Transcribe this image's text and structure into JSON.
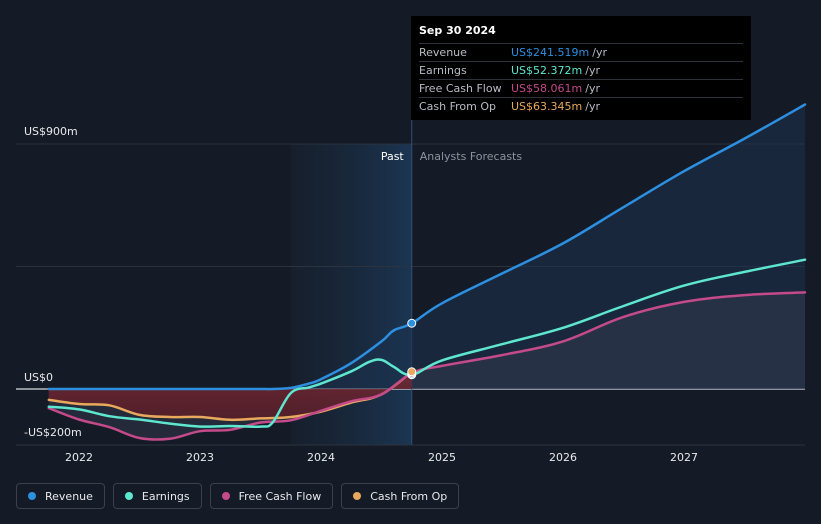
{
  "colors": {
    "revenue": "#2d8fe0",
    "earnings": "#5ee6cf",
    "free_cash_flow": "#c44a8a",
    "cash_from_op": "#e8a95c",
    "background": "#151b26"
  },
  "tooltip": {
    "date": "Sep 30 2024",
    "rows": [
      {
        "name": "Revenue",
        "value": "US$241.519m",
        "unit": "/yr",
        "color": "#2d8fe0"
      },
      {
        "name": "Earnings",
        "value": "US$52.372m",
        "unit": "/yr",
        "color": "#5ee6cf"
      },
      {
        "name": "Free Cash Flow",
        "value": "US$58.061m",
        "unit": "/yr",
        "color": "#c44a8a"
      },
      {
        "name": "Cash From Op",
        "value": "US$63.345m",
        "unit": "/yr",
        "color": "#e8a95c"
      }
    ]
  },
  "legend": [
    {
      "label": "Revenue",
      "color": "#2d8fe0"
    },
    {
      "label": "Earnings",
      "color": "#5ee6cf"
    },
    {
      "label": "Free Cash Flow",
      "color": "#c44a8a"
    },
    {
      "label": "Cash From Op",
      "color": "#e8a95c"
    }
  ],
  "chart_data": {
    "type": "line",
    "title": "",
    "xlabel": "",
    "ylabel": "",
    "ylim": [
      -250,
      900
    ],
    "y_tick_labels": [
      {
        "value": 900,
        "label": "US$900m"
      },
      {
        "value": 0,
        "label": "US$0"
      },
      {
        "value": -200,
        "label": "-US$200m"
      }
    ],
    "xlim": [
      2021.6,
      2028.0
    ],
    "x_tick_labels": [
      "2022",
      "2023",
      "2024",
      "2025",
      "2026",
      "2027"
    ],
    "x_tick_values": [
      2022,
      2023,
      2024,
      2025,
      2026,
      2027
    ],
    "past_label": "Past",
    "forecast_label": "Analysts Forecasts",
    "past_start": 2023.75,
    "divider": 2024.75,
    "series": [
      {
        "name": "Revenue",
        "color": "#2d8fe0",
        "x": [
          2021.75,
          2022.0,
          2022.5,
          2023.0,
          2023.25,
          2023.5,
          2023.6,
          2023.75,
          2023.9,
          2024.0,
          2024.25,
          2024.5,
          2024.6,
          2024.75,
          2025.0,
          2025.5,
          2026.0,
          2026.5,
          2027.0,
          2027.5,
          2028.0
        ],
        "values": [
          0,
          0,
          0,
          0,
          0,
          0,
          0,
          4,
          20,
          36,
          95,
          175,
          215,
          241.5,
          315,
          425,
          535,
          668,
          800,
          920,
          1045
        ]
      },
      {
        "name": "Earnings",
        "color": "#5ee6cf",
        "x": [
          2021.75,
          2022.0,
          2022.25,
          2022.5,
          2022.75,
          2023.0,
          2023.25,
          2023.5,
          2023.6,
          2023.75,
          2023.9,
          2024.0,
          2024.25,
          2024.4,
          2024.5,
          2024.6,
          2024.75,
          2025.0,
          2025.5,
          2026.0,
          2026.5,
          2027.0,
          2027.5,
          2028.0
        ],
        "values": [
          -65,
          -75,
          -100,
          -112,
          -127,
          -138,
          -136,
          -138,
          -123,
          -15,
          6,
          20,
          65,
          100,
          107,
          82,
          52.4,
          105,
          165,
          225,
          305,
          380,
          430,
          475
        ]
      },
      {
        "name": "Free Cash Flow",
        "color": "#c44a8a",
        "x": [
          2021.75,
          2022.0,
          2022.25,
          2022.5,
          2022.75,
          2023.0,
          2023.25,
          2023.5,
          2023.75,
          2024.0,
          2024.25,
          2024.5,
          2024.75,
          2025.0,
          2025.5,
          2026.0,
          2026.5,
          2027.0,
          2027.5,
          2028.0
        ],
        "values": [
          -70,
          -112,
          -140,
          -180,
          -183,
          -155,
          -150,
          -123,
          -115,
          -80,
          -45,
          -20,
          58.1,
          85,
          125,
          175,
          265,
          320,
          345,
          355
        ]
      },
      {
        "name": "Cash From Op",
        "color": "#e8a95c",
        "x": [
          2021.75,
          2022.0,
          2022.25,
          2022.5,
          2022.75,
          2023.0,
          2023.25,
          2023.5,
          2023.75,
          2024.0,
          2024.25,
          2024.5,
          2024.75
        ],
        "values": [
          -40,
          -55,
          -60,
          -95,
          -103,
          -103,
          -113,
          -108,
          -103,
          -83,
          -50,
          -20,
          63.3
        ]
      }
    ],
    "markers": [
      {
        "series": "Revenue",
        "x": 2024.75,
        "value": 241.519
      },
      {
        "series": "Earnings",
        "x": 2024.75,
        "value": 52.372
      },
      {
        "series": "Free Cash Flow",
        "x": 2024.75,
        "value": 58.061
      },
      {
        "series": "Cash From Op",
        "x": 2024.75,
        "value": 63.345
      }
    ]
  }
}
